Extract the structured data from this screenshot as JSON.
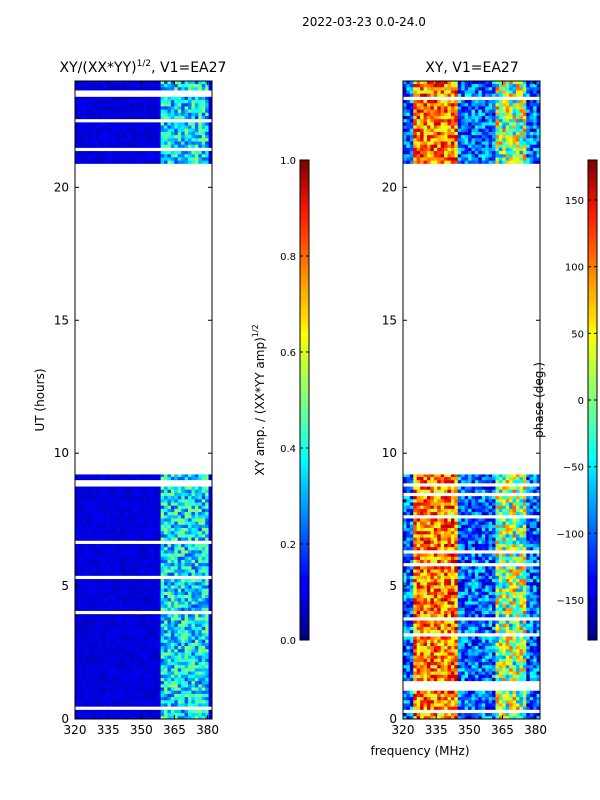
{
  "figure_title": "2022-03-23 0.0-24.0",
  "shared_xlabel": "frequency (MHz)",
  "chart_data": [
    {
      "type": "heatmap",
      "title": "XY/(XX*YY)$^{1/2}$, V1=EA27",
      "title_main": "XY/(XX*YY)",
      "title_sup": "1/2",
      "title_suffix": ", V1=EA27",
      "xlabel": "frequency (MHz)",
      "ylabel": "UT (hours)",
      "xlim": [
        320,
        382
      ],
      "ylim": [
        0,
        24
      ],
      "xticks": [
        "320",
        "335",
        "350",
        "365",
        "380"
      ],
      "xtick_values": [
        320,
        335,
        350,
        365,
        380
      ],
      "yticks": [
        "0",
        "5",
        "10",
        "15",
        "20"
      ],
      "ytick_values": [
        0,
        5,
        10,
        15,
        20
      ],
      "data_time_ranges_hours": [
        [
          0,
          9.2
        ],
        [
          20.9,
          24
        ]
      ],
      "colormap": "jet",
      "colorbar": {
        "label": "XY amp. / (XX*YY amp)$^{1/2}$",
        "label_main": "XY amp. / (XX*YY amp)",
        "label_sup": "1/2",
        "range": [
          0.0,
          1.0
        ],
        "ticks": [
          "0.0",
          "0.2",
          "0.4",
          "0.6",
          "0.8",
          "1.0"
        ],
        "tick_values": [
          0.0,
          0.2,
          0.4,
          0.6,
          0.8,
          1.0
        ]
      }
    },
    {
      "type": "heatmap",
      "title": "XY, V1=EA27",
      "xlabel": "frequency (MHz)",
      "ylabel": "",
      "xlim": [
        320,
        382
      ],
      "ylim": [
        0,
        24
      ],
      "xticks": [
        "320",
        "335",
        "350",
        "365",
        "380"
      ],
      "xtick_values": [
        320,
        335,
        350,
        365,
        380
      ],
      "yticks": [
        "0",
        "5",
        "10",
        "15",
        "20"
      ],
      "ytick_values": [
        0,
        5,
        10,
        15,
        20
      ],
      "data_time_ranges_hours": [
        [
          0,
          9.2
        ],
        [
          20.9,
          24
        ]
      ],
      "colormap": "jet",
      "colorbar": {
        "label": "phase (deg.)",
        "range": [
          -180,
          180
        ],
        "ticks": [
          "−150",
          "−100",
          "−50",
          "0",
          "50",
          "100",
          "150"
        ],
        "tick_values": [
          -150,
          -100,
          -50,
          0,
          50,
          100,
          150
        ]
      }
    }
  ]
}
